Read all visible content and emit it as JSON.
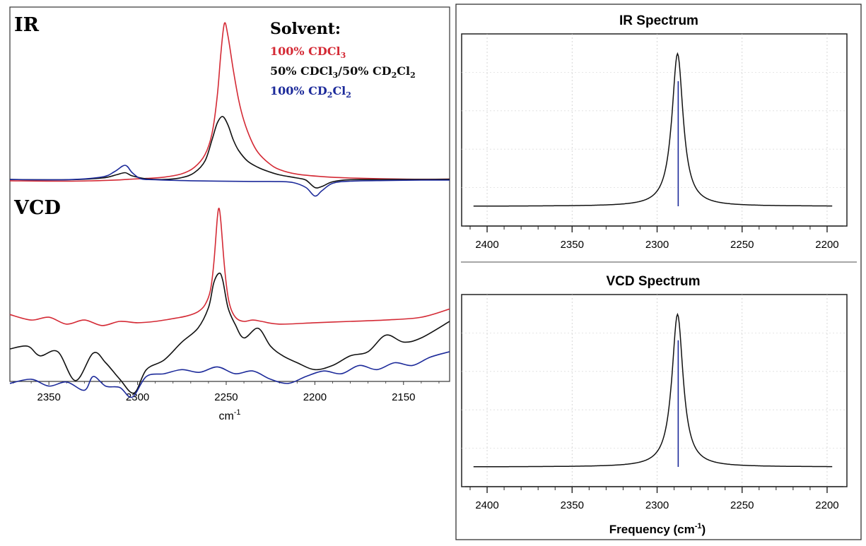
{
  "chart_data": [
    {
      "type": "line",
      "panel": "experimental",
      "labels": {
        "ir": "IR",
        "vcd": "VCD"
      },
      "legend": {
        "title": "Solvent:",
        "entries": [
          {
            "text": "100% CDCl",
            "sub": "3",
            "color": "#d42a35"
          },
          {
            "text": "50% CDCl",
            "sub": "3",
            "mid": "/50% CD",
            "sub2": "2",
            "tail": "Cl",
            "sub3": "2",
            "color": "#111111"
          },
          {
            "text": "100% CD",
            "sub": "2",
            "tail": "Cl",
            "sub3": "2",
            "color": "#1c2a9a"
          }
        ],
        "placement": "top-right"
      },
      "xlabel": "cm",
      "xlabel_sup": "-1",
      "xlim": [
        2372,
        2124
      ],
      "xticks": [
        2350,
        2300,
        2250,
        2200,
        2150
      ],
      "series": [
        {
          "color": "#d42a35",
          "panel": "ir",
          "x": [
            2372,
            2340,
            2320,
            2310,
            2305,
            2295,
            2285,
            2275,
            2268,
            2262,
            2258,
            2255,
            2253,
            2251,
            2249,
            2246,
            2243,
            2240,
            2236,
            2232,
            2226,
            2220,
            2210,
            2195,
            2180,
            2160,
            2140,
            2124
          ],
          "y": [
            -0.3,
            -0.5,
            -0.2,
            0.1,
            0.4,
            0.8,
            1.4,
            3.0,
            6.0,
            12.0,
            22.0,
            40.0,
            60.0,
            74.0,
            68.0,
            52.0,
            38.0,
            28.0,
            19.0,
            13.0,
            8.0,
            5.0,
            2.8,
            1.6,
            1.0,
            0.6,
            0.4,
            0.5
          ]
        },
        {
          "color": "#111111",
          "panel": "ir",
          "x": [
            2372,
            2340,
            2320,
            2312,
            2307,
            2303,
            2295,
            2285,
            2275,
            2268,
            2262,
            2258,
            2255,
            2252,
            2249,
            2246,
            2243,
            2238,
            2232,
            2226,
            2220,
            2210,
            2205,
            2200,
            2196,
            2190,
            2180,
            2160,
            2140,
            2124
          ],
          "y": [
            0.3,
            0.2,
            1.0,
            2.5,
            3.5,
            2.0,
            0.6,
            0.3,
            1.2,
            3.5,
            9.0,
            19.0,
            27.0,
            30.0,
            26.0,
            19.0,
            14.0,
            9.0,
            6.0,
            4.0,
            2.5,
            1.0,
            0.0,
            -3.5,
            -3.0,
            -0.8,
            0.2,
            0.3,
            0.3,
            0.4
          ]
        },
        {
          "color": "#1c2a9a",
          "panel": "ir",
          "x": [
            2372,
            2340,
            2320,
            2313,
            2307,
            2303,
            2298,
            2290,
            2270,
            2240,
            2220,
            2212,
            2205,
            2200,
            2196,
            2190,
            2180,
            2160,
            2140,
            2124
          ],
          "y": [
            0.3,
            0.2,
            1.5,
            4.0,
            7.0,
            3.5,
            0.6,
            0.2,
            -0.3,
            -0.6,
            -0.7,
            -1.2,
            -3.5,
            -7.5,
            -5.0,
            -1.5,
            -0.5,
            -0.2,
            0.0,
            0.0
          ]
        },
        {
          "color": "#d42a35",
          "panel": "vcd",
          "x": [
            2372,
            2360,
            2350,
            2340,
            2330,
            2320,
            2310,
            2300,
            2290,
            2280,
            2272,
            2266,
            2262,
            2259,
            2257,
            2255,
            2254,
            2253,
            2251,
            2249,
            2247,
            2244,
            2240,
            2235,
            2230,
            2220,
            2200,
            2180,
            2160,
            2140,
            2124
          ],
          "y": [
            5,
            1,
            3,
            -2,
            1,
            -3,
            0,
            -1,
            0,
            2,
            4,
            7,
            12,
            22,
            42,
            75,
            82,
            72,
            40,
            18,
            8,
            2,
            0,
            1,
            0,
            -2,
            -1,
            0,
            1,
            3,
            9
          ]
        },
        {
          "color": "#111111",
          "panel": "vcd",
          "x": [
            2372,
            2362,
            2355,
            2345,
            2335,
            2325,
            2318,
            2310,
            2302,
            2295,
            2285,
            2275,
            2266,
            2260,
            2257,
            2254,
            2252,
            2249,
            2245,
            2240,
            2232,
            2225,
            2218,
            2210,
            2200,
            2190,
            2180,
            2170,
            2160,
            2150,
            2140,
            2124
          ],
          "y": [
            -20,
            -18,
            -25,
            -22,
            -43,
            -23,
            -30,
            -42,
            -52,
            -35,
            -28,
            -15,
            -5,
            10,
            28,
            35,
            30,
            10,
            -2,
            -12,
            -5,
            -18,
            -25,
            -30,
            -35,
            -32,
            -25,
            -22,
            -10,
            -15,
            -12,
            0
          ]
        },
        {
          "color": "#1c2a9a",
          "panel": "vcd",
          "x": [
            2372,
            2360,
            2350,
            2340,
            2330,
            2325,
            2318,
            2310,
            2303,
            2295,
            2285,
            2275,
            2265,
            2255,
            2245,
            2235,
            2225,
            2215,
            2205,
            2195,
            2185,
            2175,
            2165,
            2155,
            2145,
            2135,
            2124
          ],
          "y": [
            -45,
            -42,
            -47,
            -44,
            -50,
            -40,
            -47,
            -48,
            -55,
            -40,
            -38,
            -35,
            -37,
            -33,
            -38,
            -36,
            -42,
            -45,
            -40,
            -36,
            -38,
            -32,
            -35,
            -30,
            -32,
            -26,
            -22
          ]
        }
      ]
    },
    {
      "type": "line",
      "panel": "computed-ir",
      "title": "IR Spectrum",
      "xlim": [
        2410,
        2195
      ],
      "xticks": [
        2400,
        2350,
        2300,
        2250,
        2200
      ],
      "ylim": [
        0,
        1.06
      ],
      "peak_center": 2288,
      "peak_height": 1.0,
      "peak_halfwidth": 4,
      "baseline": 0.0,
      "line_color": "#111111",
      "stick_color": "#1c2a9a",
      "stick_height": 0.82
    },
    {
      "type": "line",
      "panel": "computed-vcd",
      "title": "VCD Spectrum",
      "xlabel": "Frequency (cm",
      "xlabel_sup": "-1",
      "xlabel_tail": ")",
      "xlim": [
        2410,
        2195
      ],
      "xticks": [
        2400,
        2350,
        2300,
        2250,
        2200
      ],
      "ylim": [
        0,
        1.06
      ],
      "peak_center": 2288,
      "peak_height": 1.0,
      "peak_halfwidth": 4,
      "baseline": 0.0,
      "line_color": "#111111",
      "stick_color": "#1c2a9a",
      "stick_height": 0.83
    }
  ]
}
